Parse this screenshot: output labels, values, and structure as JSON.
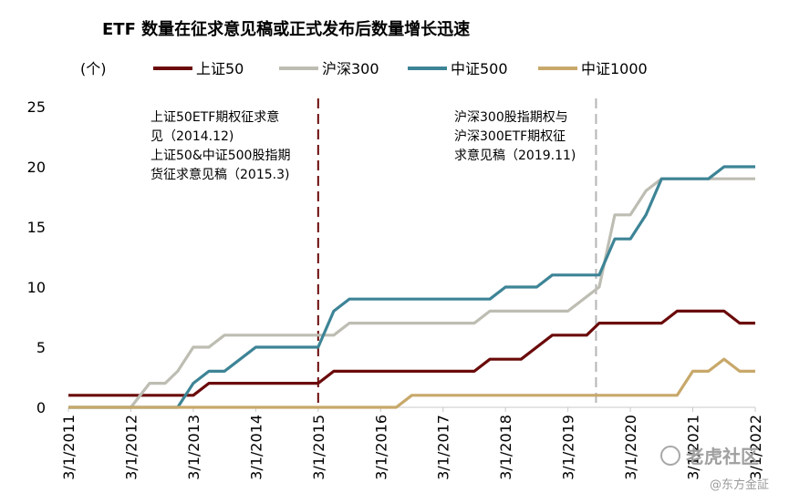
{
  "chart_data": {
    "type": "line",
    "title": "ETF 数量在征求意见稿或正式发布后数量增长迅速",
    "ylabel": "(个)",
    "ylim": [
      0,
      25
    ],
    "yticks": [
      "0",
      "5",
      "10",
      "15",
      "20",
      "25"
    ],
    "xticks": [
      "3/1/2011",
      "3/1/2012",
      "3/1/2013",
      "3/1/2014",
      "3/1/2015",
      "3/1/2016",
      "3/1/2017",
      "3/1/2018",
      "3/1/2019",
      "3/1/2020",
      "3/1/2021",
      "3/1/2022"
    ],
    "xlim": [
      2011.0,
      2022.0
    ],
    "grid": false,
    "legend_position": "top",
    "series": [
      {
        "name": "上证50",
        "color": "#6b0a0a",
        "points": [
          [
            2011.0,
            1
          ],
          [
            2013.0,
            1
          ],
          [
            2013.25,
            2
          ],
          [
            2015.0,
            2
          ],
          [
            2015.25,
            3
          ],
          [
            2017.5,
            3
          ],
          [
            2017.75,
            4
          ],
          [
            2018.25,
            4
          ],
          [
            2018.75,
            6
          ],
          [
            2019.3,
            6
          ],
          [
            2019.5,
            7
          ],
          [
            2020.5,
            7
          ],
          [
            2020.75,
            8
          ],
          [
            2021.5,
            8
          ],
          [
            2021.75,
            7
          ],
          [
            2022.0,
            7
          ]
        ]
      },
      {
        "name": "沪深300",
        "color": "#bdbdb3",
        "points": [
          [
            2011.0,
            0
          ],
          [
            2012.0,
            0
          ],
          [
            2012.3,
            2
          ],
          [
            2012.55,
            2
          ],
          [
            2012.75,
            3
          ],
          [
            2013.0,
            5
          ],
          [
            2013.25,
            5
          ],
          [
            2013.5,
            6
          ],
          [
            2015.25,
            6
          ],
          [
            2015.5,
            7
          ],
          [
            2017.5,
            7
          ],
          [
            2017.75,
            8
          ],
          [
            2019.0,
            8
          ],
          [
            2019.5,
            10
          ],
          [
            2019.75,
            16
          ],
          [
            2020.0,
            16
          ],
          [
            2020.25,
            18
          ],
          [
            2020.5,
            19
          ],
          [
            2022.0,
            19
          ]
        ]
      },
      {
        "name": "中证500",
        "color": "#3d8496",
        "points": [
          [
            2011.0,
            0
          ],
          [
            2012.75,
            0
          ],
          [
            2013.0,
            2
          ],
          [
            2013.25,
            3
          ],
          [
            2013.5,
            3
          ],
          [
            2014.0,
            5
          ],
          [
            2015.0,
            5
          ],
          [
            2015.25,
            8
          ],
          [
            2015.5,
            9
          ],
          [
            2017.75,
            9
          ],
          [
            2018.0,
            10
          ],
          [
            2018.5,
            10
          ],
          [
            2018.75,
            11
          ],
          [
            2019.5,
            11
          ],
          [
            2019.75,
            14
          ],
          [
            2020.0,
            14
          ],
          [
            2020.25,
            16
          ],
          [
            2020.5,
            19
          ],
          [
            2021.25,
            19
          ],
          [
            2021.5,
            20
          ],
          [
            2022.0,
            20
          ]
        ]
      },
      {
        "name": "中证1000",
        "color": "#c8a86a",
        "points": [
          [
            2011.0,
            0
          ],
          [
            2016.25,
            0
          ],
          [
            2016.5,
            1
          ],
          [
            2020.75,
            1
          ],
          [
            2021.0,
            3
          ],
          [
            2021.25,
            3
          ],
          [
            2021.5,
            4
          ],
          [
            2021.75,
            3
          ],
          [
            2022.0,
            3
          ]
        ]
      }
    ],
    "annotations": [
      {
        "x": 2015.0,
        "color": "#6b0a0a",
        "lines": [
          "上证50ETF期权征求意",
          "见（2014.12)",
          "上证50&中证500股指期",
          "货征求意见稿（2015.3)"
        ]
      },
      {
        "x": 2019.45,
        "color": "#b5b5b5",
        "lines": [
          "沪深300股指期权与",
          "沪深300ETF期权征",
          "求意见稿（2019.11)"
        ]
      }
    ]
  },
  "watermark": {
    "main": "老虎社区",
    "sub": "@东方金証"
  }
}
